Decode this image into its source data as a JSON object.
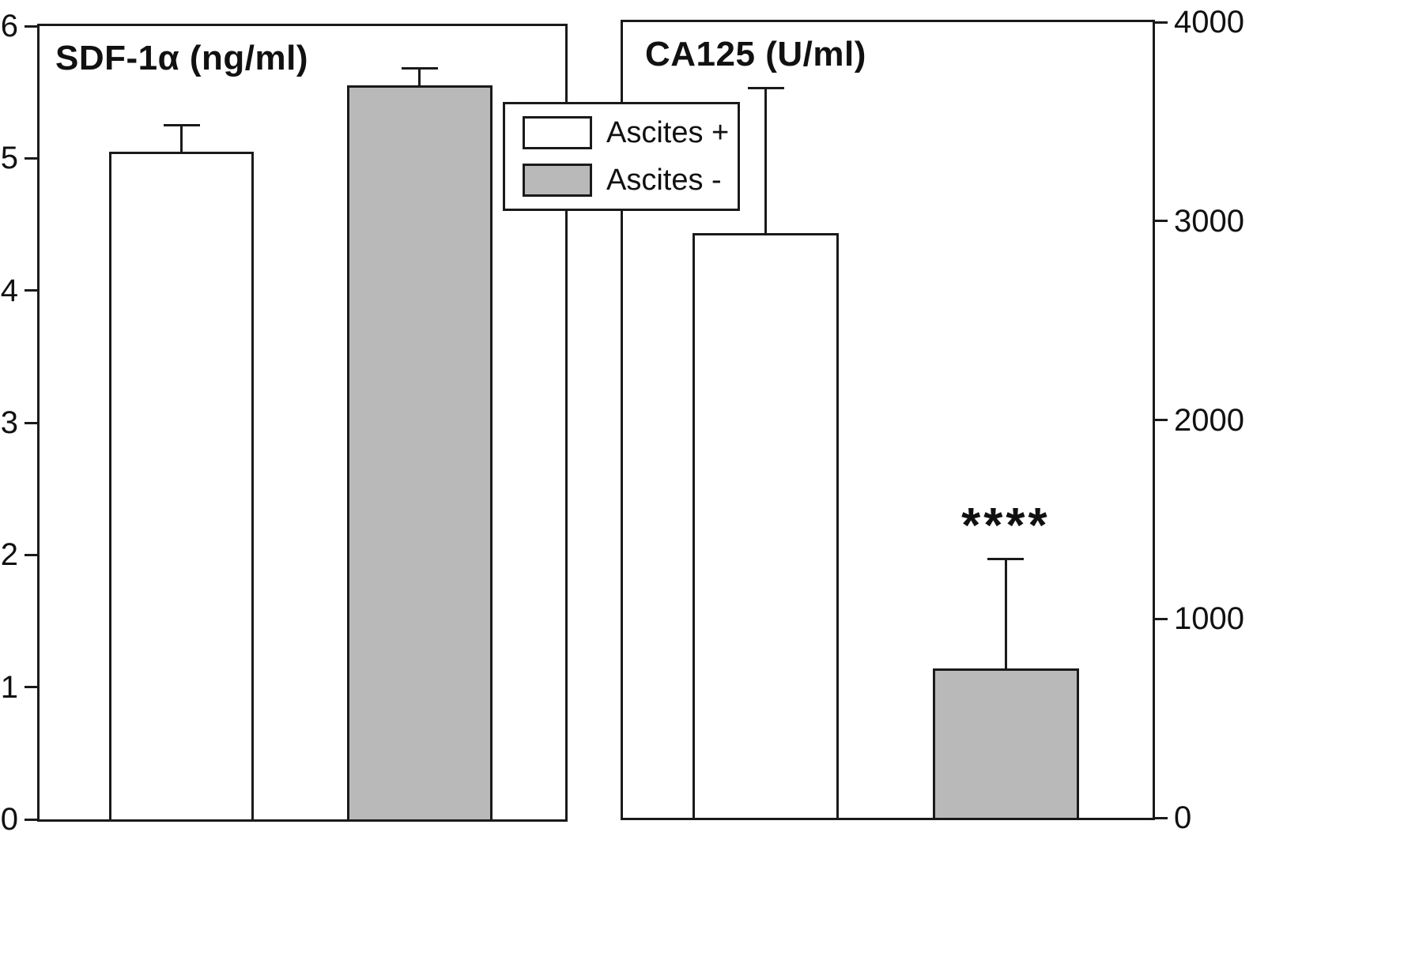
{
  "chart_data": [
    {
      "type": "bar",
      "title": "SDF-1α (ng/ml)",
      "axis_side": "left",
      "ylabel": "",
      "xlabel": "",
      "ylim": [
        0,
        6
      ],
      "yticks": [
        0,
        1,
        2,
        3,
        4,
        5,
        6
      ],
      "grid": false,
      "categories": [
        "Ascites +",
        "Ascites -"
      ],
      "values": [
        5.05,
        5.55
      ],
      "errors_up": [
        0.2,
        0.13
      ],
      "annotations": [
        "",
        ""
      ]
    },
    {
      "type": "bar",
      "title": "CA125 (U/ml)",
      "axis_side": "right",
      "ylabel": "",
      "xlabel": "",
      "ylim": [
        0,
        4000
      ],
      "yticks": [
        0,
        1000,
        2000,
        3000,
        4000
      ],
      "grid": false,
      "categories": [
        "Ascites +",
        "Ascites -"
      ],
      "values": [
        2940,
        750
      ],
      "errors_up": [
        730,
        550
      ],
      "annotations": [
        "",
        "****"
      ]
    }
  ],
  "legend": {
    "position": "top-center",
    "items": [
      {
        "label": "Ascites +",
        "color": "#ffffff"
      },
      {
        "label": "Ascites -",
        "color": "#b9b9b9"
      }
    ]
  },
  "colors": {
    "axis": "#1a1a1a",
    "background": "#ffffff",
    "bar_border": "#1a1a1a"
  }
}
